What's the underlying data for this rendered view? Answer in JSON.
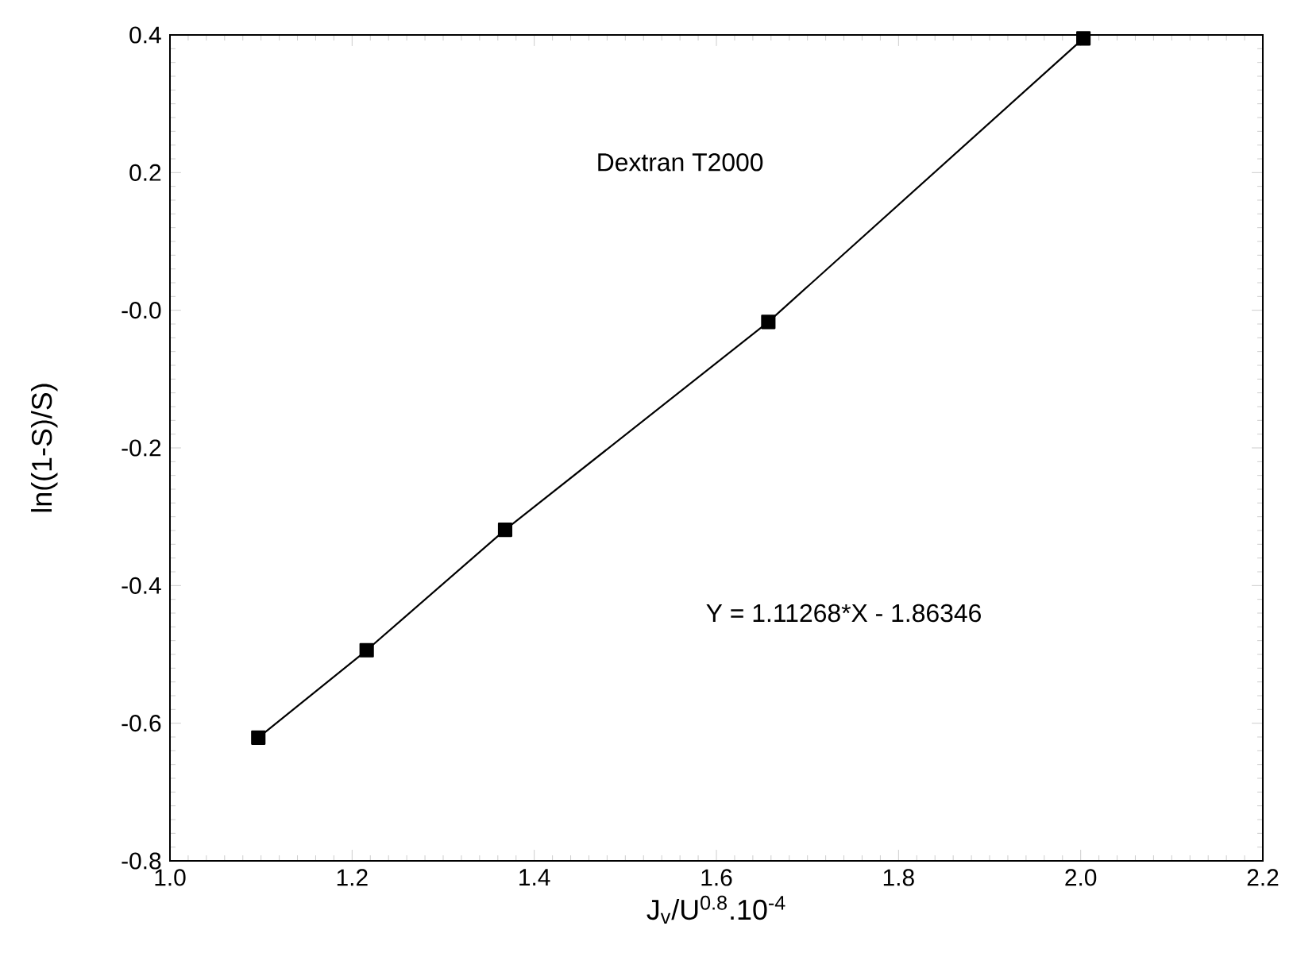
{
  "chart_data": {
    "type": "line",
    "xlabel": "J$_{v}$/U$^{0.8}$.10$^{-4}$",
    "ylabel": "ln((1-S)/S)",
    "annotations": [
      "Dextran T2000",
      "Y = 1.11268*X - 1.86346"
    ],
    "series": [
      {
        "color": "#000000",
        "x": [
          1.097,
          1.216,
          1.368,
          1.657,
          2.003
        ],
        "values": [
          -0.621,
          -0.494,
          -0.319,
          -0.017,
          0.395
        ]
      }
    ],
    "marker": "square",
    "line_style": "solid",
    "xlim": [
      1.0,
      2.2
    ],
    "xticks": [
      {
        "value": 1,
        "label": "1.0"
      },
      1.2,
      1.4,
      1.6,
      1.8,
      {
        "value": 2,
        "label": "2.0"
      },
      2.2
    ],
    "ylim": [
      -0.8,
      0.4
    ],
    "yticks": [
      -0.8,
      -0.6,
      -0.4,
      -0.2,
      {
        "value": 0,
        "label": "-0.0"
      },
      0.2,
      0.4
    ]
  }
}
